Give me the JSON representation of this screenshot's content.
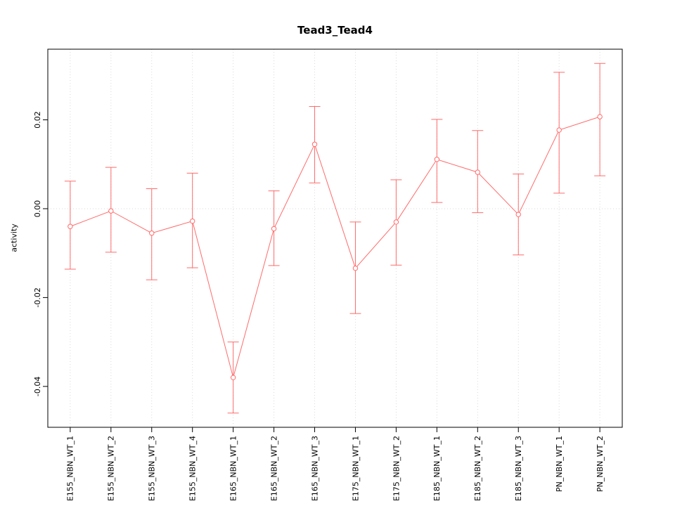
{
  "chart_data": {
    "type": "line",
    "title": "Tead3_Tead4",
    "xlabel": "",
    "ylabel": "activity",
    "categories": [
      "E155_NBN_WT_1",
      "E155_NBN_WT_2",
      "E155_NBN_WT_3",
      "E155_NBN_WT_4",
      "E165_NBN_WT_1",
      "E165_NBN_WT_2",
      "E165_NBN_WT_3",
      "E175_NBN_WT_1",
      "E175_NBN_WT_2",
      "E185_NBN_WT_1",
      "E185_NBN_WT_2",
      "E185_NBN_WT_3",
      "PN_NBN_WT_1",
      "PN_NBN_WT_2"
    ],
    "series": [
      {
        "name": "activity",
        "values": [
          -0.004,
          -0.0005,
          -0.0055,
          -0.0028,
          -0.038,
          -0.0045,
          0.0145,
          -0.0134,
          -0.003,
          0.0111,
          0.0082,
          -0.0013,
          0.0177,
          0.0207
        ],
        "upper": [
          0.0062,
          0.0093,
          0.0045,
          0.008,
          -0.03,
          0.004,
          0.023,
          -0.003,
          0.0065,
          0.0201,
          0.0176,
          0.0078,
          0.0307,
          0.0327
        ],
        "lower": [
          -0.0136,
          -0.0098,
          -0.016,
          -0.0133,
          -0.046,
          -0.0128,
          0.0058,
          -0.0236,
          -0.0127,
          0.0014,
          -0.0009,
          -0.0104,
          0.0035,
          0.0074
        ]
      }
    ],
    "error_bars": true,
    "marker": "open-circle",
    "ylim": [
      -0.0492,
      0.0359
    ],
    "yticks": [
      -0.04,
      -0.02,
      0,
      0.02
    ],
    "ytick_labels": [
      "-0.04",
      "-0.02",
      "0.00",
      "0.02"
    ],
    "grid": true,
    "grid_style": "dotted vertical at each category plus horizontal at zero",
    "legend_position": "none",
    "line_color": "#ff6b6b",
    "grid_color": "#d9d9d9",
    "axis_color": "#000000",
    "background": "#ffffff"
  }
}
